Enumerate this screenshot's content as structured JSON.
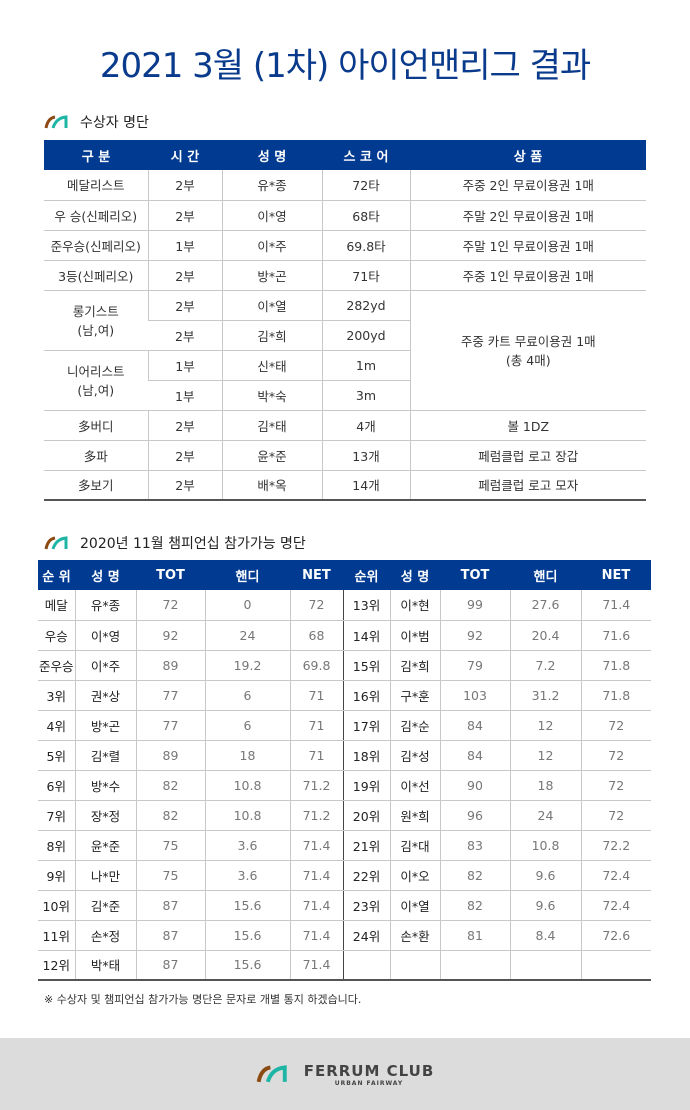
{
  "title": "2021 3월 (1차) 아이언맨리그 결과",
  "section1": {
    "title": "수상자 명단",
    "headers": [
      "구 분",
      "시 간",
      "성 명",
      "스 코 어",
      "상 품"
    ],
    "rows": [
      {
        "cat": "메달리스트",
        "time": "2부",
        "name": "유*종",
        "score": "72타",
        "prize": "주중 2인 무료이용권 1매"
      },
      {
        "cat": "우 승(신페리오)",
        "time": "2부",
        "name": "이*영",
        "score": "68타",
        "prize": "주말 2인 무료이용권 1매"
      },
      {
        "cat": "준우승(신페리오)",
        "time": "1부",
        "name": "이*주",
        "score": "69.8타",
        "prize": "주말 1인 무료이용권 1매"
      },
      {
        "cat": "3등(신페리오)",
        "time": "2부",
        "name": "방*곤",
        "score": "71타",
        "prize": "주중 1인 무료이용권 1매"
      },
      {
        "cat": "롱기스트\n(남,여)",
        "time": "2부",
        "name": "이*열",
        "score": "282yd",
        "prize": "주중 카트 무료이용권 1매\n(총 4매)"
      },
      {
        "time": "2부",
        "name": "김*희",
        "score": "200yd"
      },
      {
        "cat": "니어리스트\n(남,여)",
        "time": "1부",
        "name": "신*태",
        "score": "1m"
      },
      {
        "time": "1부",
        "name": "박*숙",
        "score": "3m"
      },
      {
        "cat": "多버디",
        "time": "2부",
        "name": "김*태",
        "score": "4개",
        "prize": "볼 1DZ"
      },
      {
        "cat": "多파",
        "time": "2부",
        "name": "윤*준",
        "score": "13개",
        "prize": "페럼클럽 로고 장갑"
      },
      {
        "cat": "多보기",
        "time": "2부",
        "name": "배*옥",
        "score": "14개",
        "prize": "페럼클럽 로고 모자"
      }
    ]
  },
  "section2": {
    "title": "2020년 11월 챔피언십 참가가능 명단",
    "headers": [
      "순 위",
      "성 명",
      "TOT",
      "핸디",
      "NET",
      "순위",
      "성 명",
      "TOT",
      "핸디",
      "NET"
    ],
    "left": [
      [
        "메달",
        "유*종",
        "72",
        "0",
        "72"
      ],
      [
        "우승",
        "이*영",
        "92",
        "24",
        "68"
      ],
      [
        "준우승",
        "이*주",
        "89",
        "19.2",
        "69.8"
      ],
      [
        "3위",
        "권*상",
        "77",
        "6",
        "71"
      ],
      [
        "4위",
        "방*곤",
        "77",
        "6",
        "71"
      ],
      [
        "5위",
        "김*렬",
        "89",
        "18",
        "71"
      ],
      [
        "6위",
        "방*수",
        "82",
        "10.8",
        "71.2"
      ],
      [
        "7위",
        "장*정",
        "82",
        "10.8",
        "71.2"
      ],
      [
        "8위",
        "윤*준",
        "75",
        "3.6",
        "71.4"
      ],
      [
        "9위",
        "나*만",
        "75",
        "3.6",
        "71.4"
      ],
      [
        "10위",
        "김*준",
        "87",
        "15.6",
        "71.4"
      ],
      [
        "11위",
        "손*정",
        "87",
        "15.6",
        "71.4"
      ],
      [
        "12위",
        "박*태",
        "87",
        "15.6",
        "71.4"
      ]
    ],
    "right": [
      [
        "13위",
        "이*현",
        "99",
        "27.6",
        "71.4"
      ],
      [
        "14위",
        "이*범",
        "92",
        "20.4",
        "71.6"
      ],
      [
        "15위",
        "김*희",
        "79",
        "7.2",
        "71.8"
      ],
      [
        "16위",
        "구*훈",
        "103",
        "31.2",
        "71.8"
      ],
      [
        "17위",
        "김*순",
        "84",
        "12",
        "72"
      ],
      [
        "18위",
        "김*성",
        "84",
        "12",
        "72"
      ],
      [
        "19위",
        "이*선",
        "90",
        "18",
        "72"
      ],
      [
        "20위",
        "원*희",
        "96",
        "24",
        "72"
      ],
      [
        "21위",
        "김*대",
        "83",
        "10.8",
        "72.2"
      ],
      [
        "22위",
        "이*오",
        "82",
        "9.6",
        "72.4"
      ],
      [
        "23위",
        "이*열",
        "82",
        "9.6",
        "72.4"
      ],
      [
        "24위",
        "손*환",
        "81",
        "8.4",
        "72.6"
      ]
    ]
  },
  "note": "※ 수상자 및 챔피언십 참가가능 명단은 문자로 개별 통지 하겠습니다.",
  "footer": {
    "brand": "FERRUM CLUB",
    "tagline": "URBAN FAIRWAY"
  },
  "colors": {
    "header": "#003a91",
    "title": "#0a3a8c",
    "logo_brown": "#8a4a12",
    "logo_teal": "#1fb5a5"
  }
}
